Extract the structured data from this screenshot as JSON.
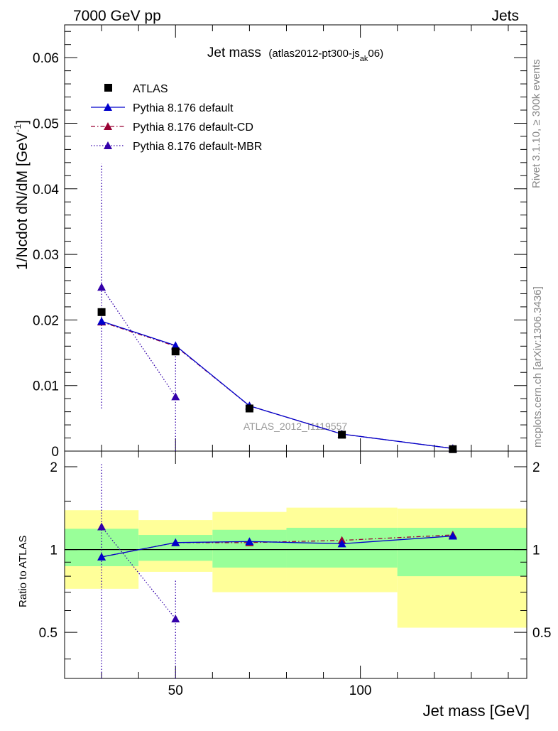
{
  "header": {
    "energy_label": "7000 GeV pp",
    "category_label": "Jets"
  },
  "side_text": {
    "rivet": "Rivet 3.1.10, ≥ 300k events",
    "mcplots": "mcplots.cern.ch [arXiv:1306.3436]"
  },
  "watermark": "ATLAS_2012_I1119557",
  "colors": {
    "atlas": "#000000",
    "default": "#0000cc",
    "default_cd": "#990033",
    "default_mbr": "#3300aa",
    "band_inner": "#99ff99",
    "band_outer": "#ffff99",
    "frame": "#000000"
  },
  "chart_data": {
    "type": "line",
    "title": "Jet mass",
    "subtitle_main": "(atlas2012-pt300-js",
    "subtitle_sub": "ak",
    "subtitle_tail": "06)",
    "xlabel": "Jet mass [GeV]",
    "ylabel": "1/Ncdot dN/dM [GeV",
    "ylabel_sup": "-1",
    "xlim": [
      20,
      145
    ],
    "xticks": [
      50,
      100
    ],
    "main_panel": {
      "ylim": [
        0,
        0.065
      ],
      "yticks": [
        0,
        0.01,
        0.02,
        0.03,
        0.04,
        0.05,
        0.06
      ],
      "ytick_labels": [
        "0",
        "0.01",
        "0.02",
        "0.03",
        "0.04",
        "0.05",
        "0.06"
      ],
      "legend_position": "top-left",
      "series": [
        {
          "name": "ATLAS",
          "marker": "square",
          "x": [
            30,
            50,
            70,
            95,
            125
          ],
          "y": [
            0.0212,
            0.0152,
            0.0065,
            0.0025,
            0.0003
          ]
        },
        {
          "name": "Pythia 8.176 default",
          "marker": "triangle",
          "line": "solid",
          "x": [
            30,
            50,
            70,
            95,
            125
          ],
          "y": [
            0.0198,
            0.0161,
            0.0069,
            0.0026,
            0.0004
          ],
          "yerr_low": [
            0,
            0.0004,
            0,
            0,
            0
          ],
          "yerr_high": [
            0,
            0.0004,
            0,
            0,
            0
          ]
        },
        {
          "name": "Pythia 8.176 default-CD",
          "marker": "triangle",
          "line": "dashdot",
          "x": [
            30,
            50,
            70,
            95,
            125
          ],
          "y": [
            0.0197,
            0.016,
            0.0069,
            0.0026,
            0.0004
          ],
          "yerr_low": [
            0,
            0.0003,
            0,
            0,
            0
          ],
          "yerr_high": [
            0,
            0.0003,
            0,
            0,
            0
          ]
        },
        {
          "name": "Pythia 8.176 default-MBR",
          "marker": "triangle",
          "line": "dotted",
          "x": [
            30,
            50
          ],
          "y": [
            0.025,
            0.0083
          ],
          "yerr_low": [
            0.0185,
            0.0083
          ],
          "yerr_high": [
            0.0188,
            0.0083
          ]
        }
      ]
    },
    "ratio_panel": {
      "ylabel": "Ratio to ATLAS",
      "ylim": [
        0.34,
        2.28
      ],
      "yticks_major": [
        0.5,
        1,
        2
      ],
      "ytick_labels": [
        "0.5",
        "1",
        "2"
      ],
      "bands": [
        {
          "xlo": 20,
          "xhi": 40,
          "inner": [
            0.87,
            1.19
          ],
          "outer": [
            0.72,
            1.39
          ]
        },
        {
          "xlo": 40,
          "xhi": 60,
          "inner": [
            0.91,
            1.13
          ],
          "outer": [
            0.83,
            1.28
          ]
        },
        {
          "xlo": 60,
          "xhi": 80,
          "inner": [
            0.86,
            1.18
          ],
          "outer": [
            0.7,
            1.37
          ]
        },
        {
          "xlo": 80,
          "xhi": 110,
          "inner": [
            0.86,
            1.2
          ],
          "outer": [
            0.7,
            1.42
          ]
        },
        {
          "xlo": 110,
          "xhi": 145,
          "inner": [
            0.8,
            1.2
          ],
          "outer": [
            0.52,
            1.41
          ]
        }
      ],
      "series": [
        {
          "name": "Pythia 8.176 default",
          "x": [
            30,
            50,
            70,
            95,
            125
          ],
          "y": [
            0.94,
            1.06,
            1.07,
            1.05,
            1.12
          ]
        },
        {
          "name": "Pythia 8.176 default-CD",
          "x": [
            30,
            50,
            70,
            95,
            125
          ],
          "y": [
            0.94,
            1.06,
            1.06,
            1.08,
            1.13
          ]
        },
        {
          "name": "Pythia 8.176 default-MBR",
          "x": [
            30,
            50
          ],
          "y": [
            1.21,
            0.56
          ],
          "yerr_low": [
            0.87,
            0.22
          ],
          "yerr_high": [
            0.87,
            0.22
          ]
        }
      ]
    }
  }
}
